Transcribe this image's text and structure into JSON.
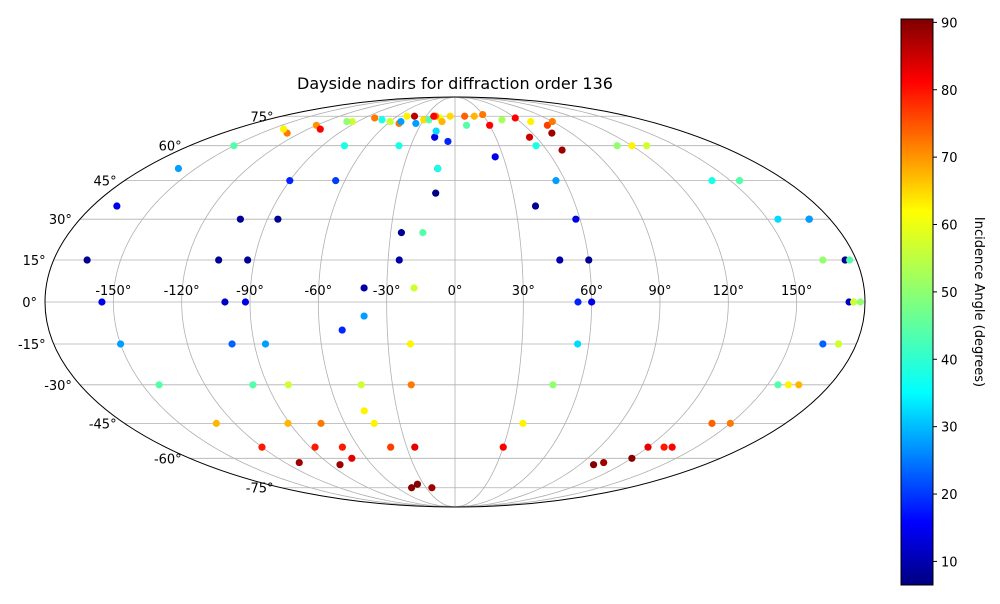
{
  "chart_data": {
    "type": "scatter",
    "projection": "mollweide",
    "title": "Dayside nadirs for diffraction order 136",
    "x_ticks": [
      "-150°",
      "-120°",
      "-90°",
      "-60°",
      "-30°",
      "0°",
      "30°",
      "60°",
      "90°",
      "120°",
      "150°"
    ],
    "x_tick_values": [
      -150,
      -120,
      -90,
      -60,
      -30,
      0,
      30,
      60,
      90,
      120,
      150
    ],
    "y_ticks": [
      "75°",
      "60°",
      "45°",
      "30°",
      "15°",
      "0°",
      "-15°",
      "-30°",
      "-45°",
      "-60°",
      "-75°"
    ],
    "y_tick_values": [
      75,
      60,
      45,
      30,
      15,
      0,
      -15,
      -30,
      -45,
      -60,
      -75
    ],
    "grid": true,
    "colorbar": {
      "label": "Incidence Angle (degrees)",
      "ticks": [
        "10",
        "20",
        "30",
        "40",
        "50",
        "60",
        "70",
        "80",
        "90"
      ],
      "tick_values": [
        10,
        20,
        30,
        40,
        50,
        60,
        70,
        80,
        90
      ],
      "range": [
        6.5,
        90.5
      ],
      "colormap": "jet"
    },
    "tracks": [
      {
        "points": [
          [
            -120,
            70,
            68
          ],
          [
            -95,
            72,
            55
          ],
          [
            -60,
            72,
            45
          ],
          [
            -35,
            71,
            30
          ],
          [
            -15,
            64,
            15
          ],
          [
            -10,
            50,
            10
          ],
          [
            -25,
            25,
            8
          ],
          [
            -40,
            5,
            10
          ],
          [
            -50,
            -10,
            20
          ],
          [
            -47,
            -40,
            60
          ],
          [
            -45,
            -75,
            90
          ]
        ]
      },
      {
        "points": [
          [
            -50,
            71,
            70
          ],
          [
            -30,
            73,
            62
          ],
          [
            -15,
            74,
            58
          ],
          [
            -5,
            62,
            20
          ],
          [
            -10,
            40,
            7
          ],
          [
            -25,
            15,
            10
          ],
          [
            -40,
            -5,
            30
          ],
          [
            -45,
            -30,
            55
          ],
          [
            -44,
            -45,
            60
          ],
          [
            -40,
            -55,
            75
          ],
          [
            -36,
            -73,
            90
          ]
        ]
      },
      {
        "points": [
          [
            -110,
            68,
            80
          ],
          [
            -80,
            74,
            70
          ],
          [
            -50,
            75,
            60
          ],
          [
            -25,
            73,
            45
          ],
          [
            -15,
            67,
            35
          ],
          [
            -10,
            50,
            40
          ],
          [
            -15,
            25,
            45
          ],
          [
            -18,
            5,
            55
          ],
          [
            -20,
            -15,
            60
          ],
          [
            -21,
            -30,
            70
          ],
          [
            -25,
            -55,
            82
          ],
          [
            -24,
            -75,
            88
          ]
        ]
      },
      {
        "points": [
          [
            -130,
            66,
            70
          ],
          [
            -150,
            60,
            45
          ],
          [
            -160,
            50,
            30
          ],
          [
            -168,
            35,
            15
          ],
          [
            -165,
            15,
            8
          ],
          [
            -155,
            0,
            15
          ],
          [
            -150,
            -15,
            30
          ],
          [
            -142,
            -30,
            45
          ],
          [
            -130,
            -45,
            65
          ],
          [
            -120,
            -55,
            78
          ],
          [
            -110,
            -62,
            88
          ]
        ]
      },
      {
        "points": [
          [
            -60,
            72,
            55
          ],
          [
            -75,
            60,
            40
          ],
          [
            -90,
            45,
            20
          ],
          [
            -103,
            30,
            8
          ],
          [
            -106,
            15,
            8
          ],
          [
            -101,
            0,
            12
          ],
          [
            -100,
            -15,
            25
          ],
          [
            -97,
            -30,
            45
          ],
          [
            -91,
            -45,
            65
          ],
          [
            -87,
            -55,
            78
          ],
          [
            -83,
            -63,
            88
          ]
        ]
      },
      {
        "points": [
          [
            -12,
            72,
            65
          ],
          [
            -38,
            60,
            40
          ],
          [
            -65,
            45,
            22
          ],
          [
            -85,
            30,
            8
          ],
          [
            -93,
            15,
            8
          ],
          [
            -92,
            0,
            15
          ],
          [
            -85,
            -15,
            30
          ],
          [
            -80,
            -30,
            55
          ],
          [
            -73,
            -45,
            70
          ],
          [
            -70,
            -55,
            78
          ],
          [
            -70,
            -60,
            82
          ]
        ]
      },
      {
        "points": [
          [
            -42,
            75,
            86
          ],
          [
            -20,
            75,
            70
          ],
          [
            -5,
            75,
            62
          ],
          [
            10,
            70,
            45
          ],
          [
            25,
            55,
            15
          ],
          [
            40,
            35,
            8
          ],
          [
            47,
            15,
            10
          ],
          [
            54,
            0,
            20
          ],
          [
            55,
            -15,
            35
          ],
          [
            47,
            -30,
            50
          ],
          [
            37,
            -45,
            60
          ],
          [
            30,
            -55,
            80
          ]
        ]
      },
      {
        "points": [
          [
            -22,
            75,
            80
          ],
          [
            10,
            75,
            72
          ],
          [
            30,
            70,
            80
          ],
          [
            55,
            64,
            84
          ],
          [
            70,
            58,
            88
          ]
        ]
      },
      {
        "points": [
          [
            30,
            76,
            70
          ],
          [
            60,
            74,
            80
          ],
          [
            75,
            66,
            88
          ]
        ]
      },
      {
        "points": [
          [
            20,
            75,
            65
          ],
          [
            45,
            73,
            52
          ],
          [
            55,
            60,
            40
          ],
          [
            55,
            45,
            30
          ],
          [
            58,
            30,
            15
          ],
          [
            60,
            15,
            8
          ],
          [
            60,
            0,
            15
          ]
        ]
      },
      {
        "points": [
          [
            80,
            70,
            75
          ],
          [
            120,
            60,
            60
          ],
          [
            155,
            45,
            45
          ],
          [
            170,
            30,
            20
          ],
          [
            175,
            15,
            8
          ],
          [
            173,
            0,
            12
          ],
          [
            165,
            -15,
            25
          ],
          [
            155,
            -30,
            45
          ],
          [
            140,
            -45,
            65
          ],
          [
            130,
            -55,
            78
          ],
          [
            120,
            -60,
            90
          ]
        ]
      },
      {
        "points": [
          [
            70,
            72,
            60
          ],
          [
            110,
            60,
            50
          ],
          [
            140,
            45,
            40
          ],
          [
            155,
            30,
            35
          ],
          [
            165,
            15,
            50
          ],
          [
            175,
            0,
            55
          ],
          [
            172,
            -15,
            60
          ],
          [
            165,
            -30,
            65
          ],
          [
            150,
            -45,
            70
          ],
          [
            135,
            -55,
            80
          ],
          [
            100,
            -63,
            90
          ]
        ]
      },
      {
        "points": [
          [
            90,
            72,
            70
          ],
          [
            130,
            60,
            55
          ],
          [
            155,
            45,
            45
          ],
          [
            170,
            30,
            30
          ],
          [
            177,
            15,
            45
          ],
          [
            178,
            0,
            50
          ],
          [
            172,
            -15,
            55
          ],
          [
            160,
            -30,
            60
          ],
          [
            140,
            -45,
            72
          ],
          [
            120,
            -55,
            82
          ],
          [
            105,
            -62,
            88
          ]
        ]
      },
      {
        "points": [
          [
            -140,
            68,
            60
          ],
          [
            -100,
            72,
            50
          ],
          [
            -70,
            73,
            40
          ],
          [
            -50,
            72,
            30
          ]
        ]
      }
    ]
  }
}
